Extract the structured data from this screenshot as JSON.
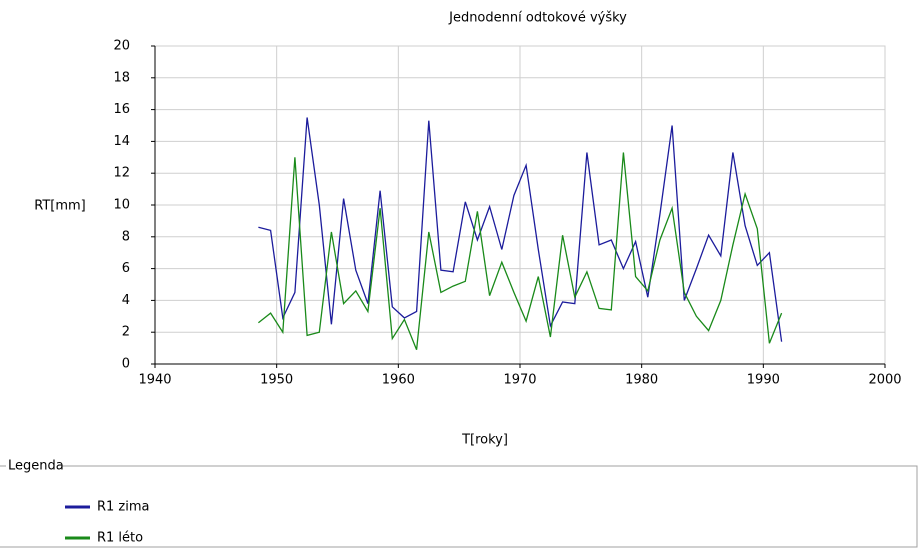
{
  "chart_data": {
    "type": "line",
    "title": "Jednodenní odtokové výšky",
    "x_label": "T[roky]",
    "y_label": "RT[mm]",
    "legend_title": "Legenda",
    "x": [
      1948.5,
      1949.5,
      1950.5,
      1951.5,
      1952.5,
      1953.5,
      1954.5,
      1955.5,
      1956.5,
      1957.5,
      1958.5,
      1959.5,
      1960.5,
      1961.5,
      1962.5,
      1963.5,
      1964.5,
      1965.5,
      1966.5,
      1967.5,
      1968.5,
      1969.5,
      1970.5,
      1971.5,
      1972.5,
      1973.5,
      1974.5,
      1975.5,
      1976.5,
      1977.5,
      1978.5,
      1979.5,
      1980.5,
      1981.5,
      1982.5,
      1983.5,
      1984.5,
      1985.5,
      1986.5,
      1987.5,
      1988.5,
      1989.5,
      1990.5,
      1991.5
    ],
    "series": [
      {
        "name": "R1 zima",
        "color": "#1c1c9c",
        "values": [
          8.6,
          8.4,
          2.9,
          4.5,
          15.5,
          10.0,
          2.5,
          10.4,
          5.9,
          3.8,
          10.9,
          3.6,
          2.9,
          3.3,
          15.3,
          5.9,
          5.8,
          10.2,
          7.8,
          9.9,
          7.2,
          10.6,
          12.5,
          7.2,
          2.4,
          3.9,
          3.8,
          13.3,
          7.5,
          7.8,
          6.0,
          7.7,
          4.2,
          9.4,
          15.0,
          4.0,
          6.0,
          8.1,
          6.8,
          13.3,
          8.7,
          6.2,
          7.0,
          1.4
        ]
      },
      {
        "name": "R1 léto",
        "color": "#1a8a1a",
        "values": [
          2.6,
          3.2,
          2.0,
          13.0,
          1.8,
          2.0,
          8.3,
          3.8,
          4.6,
          3.3,
          9.8,
          1.6,
          2.8,
          0.9,
          8.3,
          4.5,
          4.9,
          5.2,
          9.6,
          4.3,
          6.4,
          4.5,
          2.7,
          5.5,
          1.7,
          8.1,
          4.2,
          5.8,
          3.5,
          3.4,
          13.3,
          5.5,
          4.6,
          7.8,
          9.8,
          4.5,
          3.0,
          2.1,
          4.0,
          7.5,
          10.7,
          8.5,
          1.3,
          3.2
        ]
      }
    ],
    "xlim": [
      1940,
      2000
    ],
    "xticks": [
      1940,
      1950,
      1960,
      1970,
      1980,
      1990,
      2000
    ],
    "ylim": [
      0,
      20
    ],
    "yticks": [
      0,
      2,
      4,
      6,
      8,
      10,
      12,
      14,
      16,
      18,
      20
    ],
    "grid": true
  }
}
